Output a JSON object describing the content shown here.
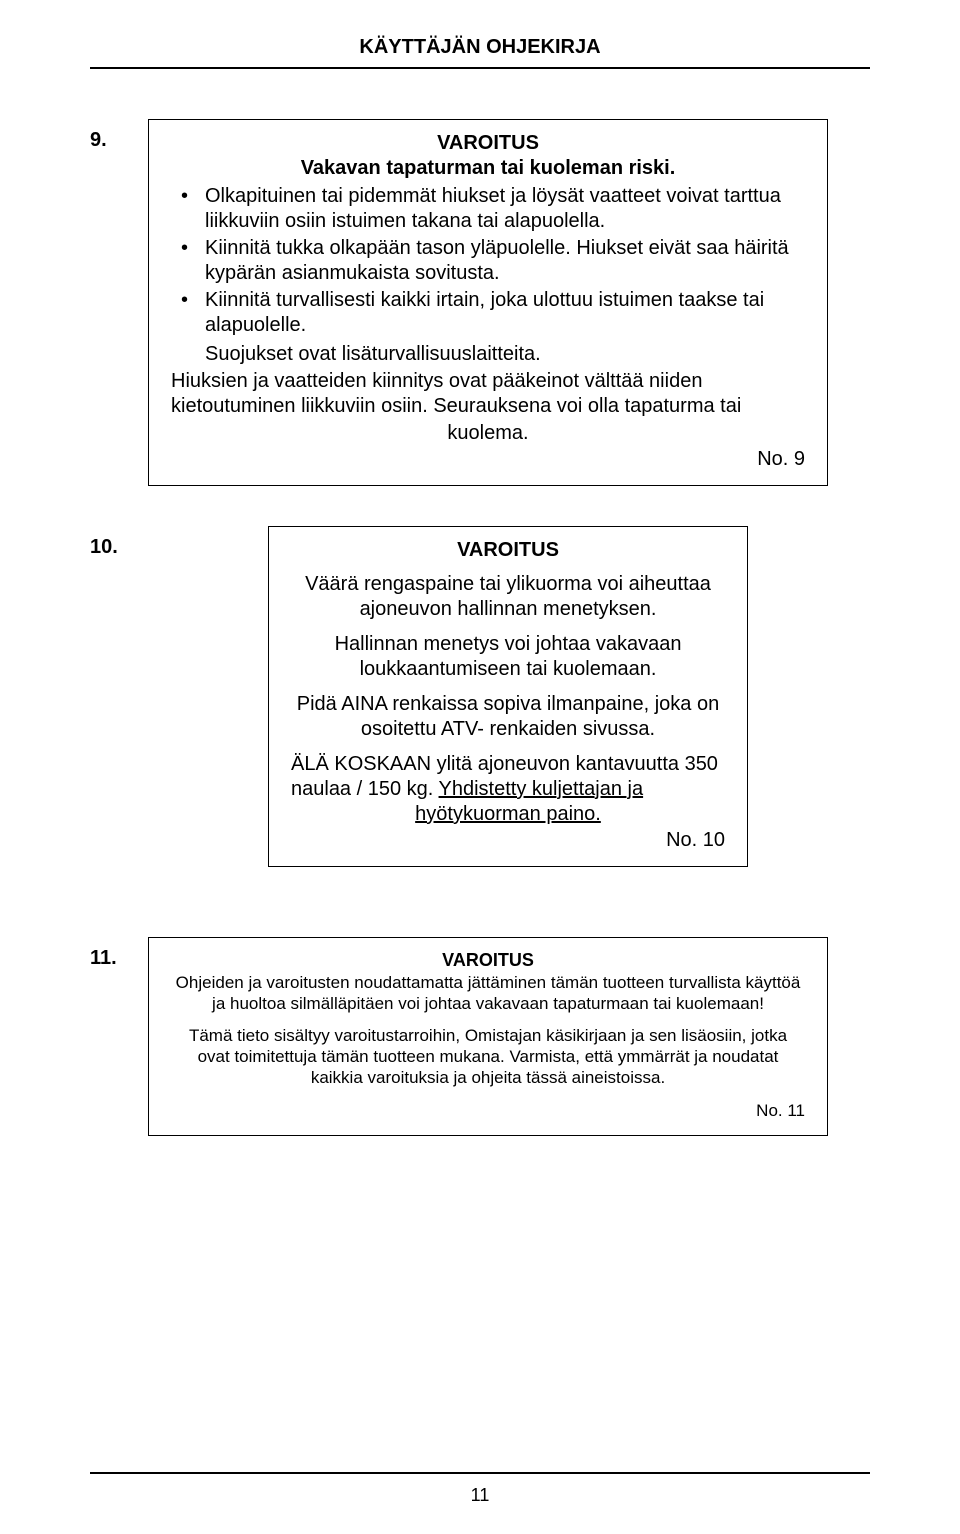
{
  "header": {
    "title": "KÄYTTÄJÄN OHJEKIRJA"
  },
  "sections": {
    "s9": {
      "num": "9.",
      "title": "VAROITUS",
      "subtitle": "Vakavan tapaturman tai kuoleman riski.",
      "bullets": [
        "Olkapituinen tai pidemmät hiukset ja löysät vaatteet voivat tarttua liikkuviin osiin istuimen takana tai alapuolella.",
        "Kiinnitä tukka olkapään tason yläpuolelle. Hiukset eivät saa häiritä kypärän asianmukaista sovitusta.",
        "Kiinnitä turvallisesti kaikki irtain, joka ulottuu istuimen taakse tai alapuolelle."
      ],
      "indent_line": "Suojukset ovat lisäturvallisuuslaitteita.",
      "body1": "Hiuksien ja vaatteiden kiinnitys ovat pääkeinot välttää niiden kietoutuminen liikkuviin osiin. Seurauksena voi olla tapaturma tai",
      "body2": "kuolema.",
      "tag": "No. 9"
    },
    "s10": {
      "num": "10.",
      "title": "VAROITUS",
      "p1": "Väärä rengaspaine tai ylikuorma voi aiheuttaa ajoneuvon hallinnan menetyksen.",
      "p2": "Hallinnan menetys voi johtaa vakavaan loukkaantumiseen tai kuolemaan.",
      "p3": "Pidä AINA renkaissa sopiva ilmanpaine, joka on osoitettu ATV- renkaiden sivussa.",
      "p4a": "ÄLÄ KOSKAAN ylitä ajoneuvon kantavuutta 350 naulaa / 150 kg. ",
      "p4u1": "Yhdistetty kuljettajan ja",
      "p4u2": "hyötykuorman paino.",
      "tag": "No. 10"
    },
    "s11": {
      "num": "11.",
      "title": "VAROITUS",
      "p1": "Ohjeiden ja varoitusten noudattamatta jättäminen tämän tuotteen turvallista käyttöä ja huoltoa silmälläpitäen voi johtaa vakavaan tapaturmaan tai kuolemaan!",
      "p2": "Tämä tieto sisältyy varoitustarroihin, Omistajan käsikirjaan ja sen lisäosiin, jotka ovat toimitettuja tämän tuotteen mukana. Varmista, että ymmärrät ja noudatat kaikkia varoituksia ja ohjeita tässä aineistoissa.",
      "tag": "No. 11"
    }
  },
  "page_number": "11"
}
